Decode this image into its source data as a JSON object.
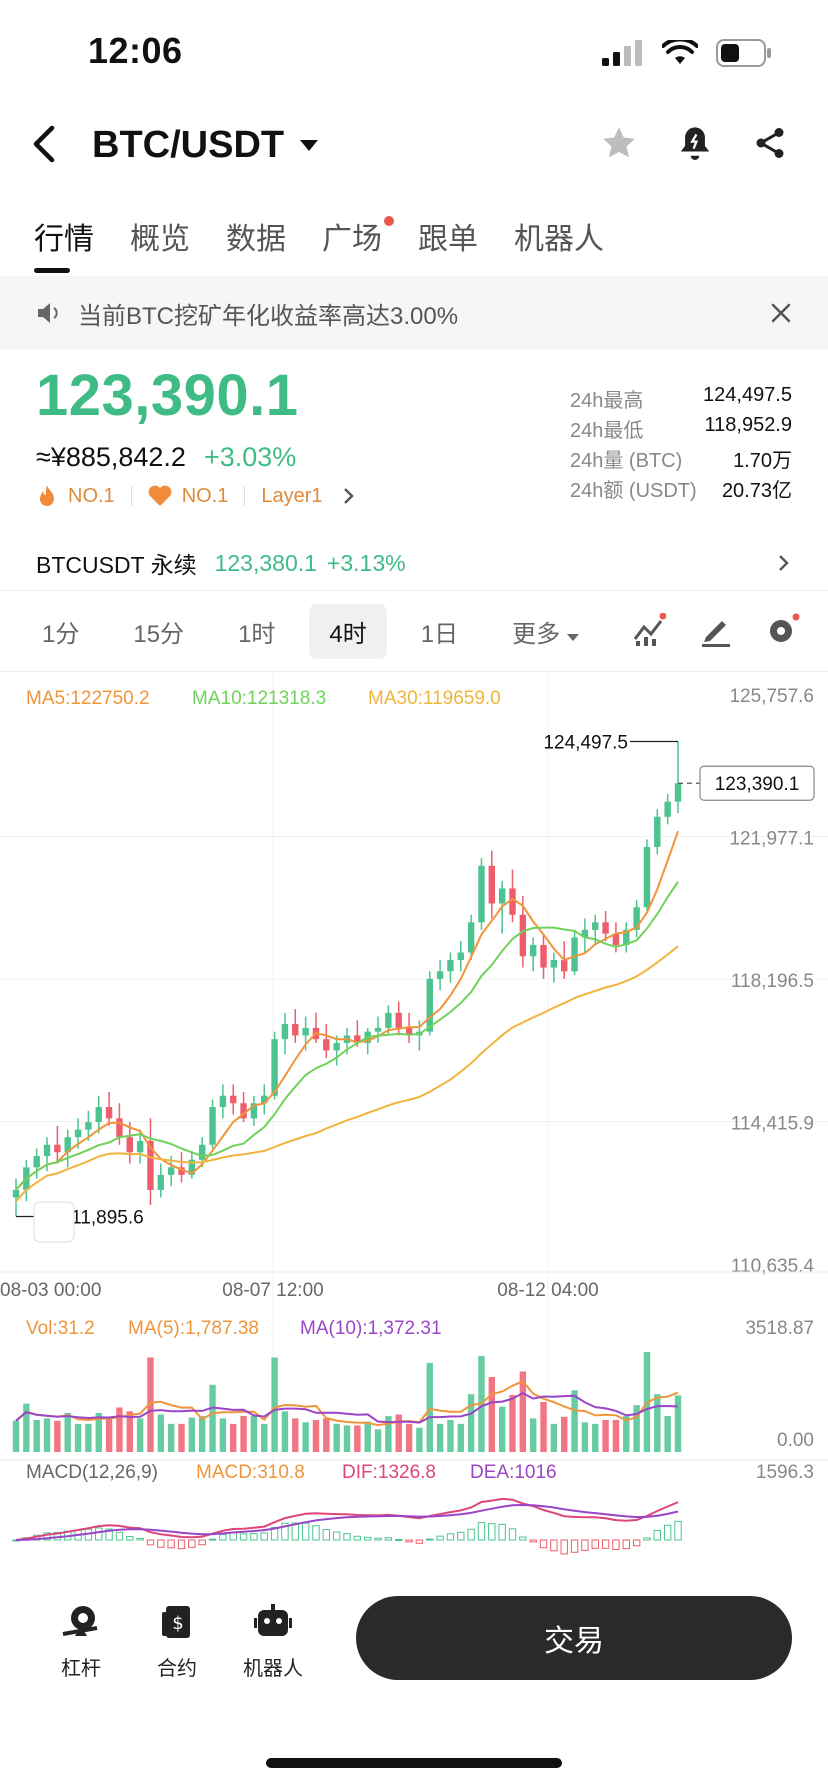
{
  "status_bar": {
    "time": "12:06",
    "icons": [
      "cellular-icon",
      "wifi-icon",
      "battery-icon"
    ]
  },
  "header": {
    "pair": "BTC/USDT",
    "icons": [
      "back-icon",
      "star-icon",
      "bell-icon",
      "share-icon"
    ]
  },
  "tabs": [
    {
      "label": "行情",
      "active": true
    },
    {
      "label": "概览"
    },
    {
      "label": "数据"
    },
    {
      "label": "广场",
      "dot": true
    },
    {
      "label": "跟单"
    },
    {
      "label": "机器人"
    }
  ],
  "notice": {
    "text": "当前BTC挖矿年化收益率高达3.00%"
  },
  "price": {
    "last": "123,390.1",
    "cny": "≈¥885,842.2",
    "change": "+3.03%",
    "tags": [
      "NO.1",
      "NO.1",
      "Layer1"
    ]
  },
  "stats": [
    {
      "label": "24h最高",
      "value": "124,497.5"
    },
    {
      "label": "24h最低",
      "value": "118,952.9"
    },
    {
      "label": "24h量 (BTC)",
      "value": "1.70万"
    },
    {
      "label": "24h额 (USDT)",
      "value": "20.73亿"
    }
  ],
  "perpetual": {
    "label": "BTCUSDT 永续",
    "price": "123,380.1",
    "change": "+3.13%"
  },
  "timeframes": [
    {
      "label": "1分"
    },
    {
      "label": "15分"
    },
    {
      "label": "1时"
    },
    {
      "label": "4时",
      "active": true
    },
    {
      "label": "1日"
    },
    {
      "label": "更多"
    }
  ],
  "chart_data": {
    "type": "candlestick",
    "ma_legend": {
      "ma5": "MA5:122750.2",
      "ma10": "MA10:121318.3",
      "ma30": "MA30:119659.0"
    },
    "y_ticks": [
      "125,757.6",
      "121,977.1",
      "118,196.5",
      "114,415.9",
      "110,635.4"
    ],
    "y_range": [
      110635.4,
      125757.6
    ],
    "x_ticks": [
      "08-03 00:00",
      "08-07 12:00",
      "08-12 04:00"
    ],
    "high_label": "124,497.5",
    "low_label": "111,895.6",
    "current_label": "123,390.1",
    "candles_ohlc": [
      [
        112400,
        112900,
        111895.6,
        112600
      ],
      [
        112600,
        113400,
        112300,
        113200
      ],
      [
        113200,
        113700,
        112900,
        113500
      ],
      [
        113500,
        114000,
        113100,
        113800
      ],
      [
        113800,
        114300,
        113300,
        113600
      ],
      [
        113600,
        114200,
        113200,
        114000
      ],
      [
        114000,
        114500,
        113700,
        114200
      ],
      [
        114200,
        114700,
        113900,
        114400
      ],
      [
        114400,
        115100,
        114100,
        114800
      ],
      [
        114800,
        115200,
        114300,
        114500
      ],
      [
        114500,
        114900,
        113800,
        114000
      ],
      [
        114000,
        114400,
        113300,
        113600
      ],
      [
        113600,
        114200,
        113300,
        113900
      ],
      [
        113900,
        114500,
        112200,
        112600
      ],
      [
        112600,
        113300,
        112400,
        113000
      ],
      [
        113000,
        113500,
        112700,
        113200
      ],
      [
        113200,
        113600,
        112800,
        113000
      ],
      [
        113000,
        113600,
        112900,
        113400
      ],
      [
        113400,
        114000,
        113200,
        113800
      ],
      [
        113800,
        115000,
        113700,
        114800
      ],
      [
        114800,
        115400,
        114500,
        115100
      ],
      [
        115100,
        115400,
        114600,
        114900
      ],
      [
        114900,
        115200,
        114400,
        114500
      ],
      [
        114500,
        115100,
        114300,
        114900
      ],
      [
        114900,
        115400,
        114600,
        115100
      ],
      [
        115100,
        116800,
        115000,
        116600
      ],
      [
        116600,
        117300,
        116200,
        117000
      ],
      [
        117000,
        117400,
        116500,
        116700
      ],
      [
        116700,
        117200,
        116300,
        116900
      ],
      [
        116900,
        117300,
        116500,
        116600
      ],
      [
        116600,
        117000,
        116100,
        116300
      ],
      [
        116300,
        116700,
        115900,
        116500
      ],
      [
        116500,
        116900,
        116200,
        116700
      ],
      [
        116700,
        117100,
        116400,
        116500
      ],
      [
        116500,
        116900,
        116200,
        116800
      ],
      [
        116800,
        117200,
        116500,
        116900
      ],
      [
        116900,
        117500,
        116700,
        117300
      ],
      [
        117300,
        117600,
        116700,
        116900
      ],
      [
        116900,
        117300,
        116500,
        116700
      ],
      [
        116700,
        117100,
        116300,
        116800
      ],
      [
        116800,
        118400,
        116700,
        118200
      ],
      [
        118200,
        118700,
        117900,
        118400
      ],
      [
        118400,
        118900,
        118100,
        118700
      ],
      [
        118700,
        119200,
        118400,
        118900
      ],
      [
        118900,
        119900,
        118700,
        119700
      ],
      [
        119700,
        121400,
        119500,
        121200
      ],
      [
        121200,
        121600,
        119800,
        120200
      ],
      [
        120200,
        120800,
        119400,
        120600
      ],
      [
        120600,
        121100,
        119700,
        119900
      ],
      [
        119900,
        120400,
        118500,
        118800
      ],
      [
        118800,
        119300,
        118400,
        119100
      ],
      [
        119100,
        119400,
        118200,
        118500
      ],
      [
        118500,
        118900,
        118100,
        118700
      ],
      [
        118700,
        119200,
        118200,
        118400
      ],
      [
        118400,
        119500,
        118300,
        119300
      ],
      [
        119300,
        119800,
        118900,
        119500
      ],
      [
        119500,
        119900,
        119100,
        119700
      ],
      [
        119700,
        120000,
        119200,
        119400
      ],
      [
        119400,
        119700,
        118900,
        119100
      ],
      [
        119100,
        119700,
        118900,
        119500
      ],
      [
        119500,
        120300,
        119300,
        120100
      ],
      [
        120100,
        121900,
        120000,
        121700
      ],
      [
        121700,
        122700,
        121500,
        122500
      ],
      [
        122500,
        123100,
        122300,
        122900
      ],
      [
        122900,
        124497.5,
        122600,
        123390.1
      ]
    ],
    "volume_legend": {
      "vol": "Vol:31.2",
      "ma5": "MA(5):1,787.38",
      "ma10": "MA(10):1,372.31"
    },
    "volume_ticks": [
      "3518.87",
      "0.00"
    ],
    "macd_legend": {
      "label": "MACD(12,26,9)",
      "macd": "MACD:310.8",
      "dif": "DIF:1326.8",
      "dea": "DEA:1016"
    },
    "macd_ticks": [
      "1596.3"
    ]
  },
  "bottom_nav": {
    "items": [
      {
        "label": "杠杆",
        "icon": "leverage-icon"
      },
      {
        "label": "合约",
        "icon": "contract-icon"
      },
      {
        "label": "机器人",
        "icon": "robot-icon"
      }
    ],
    "trade_label": "交易"
  },
  "colors": {
    "up": "#4cc390",
    "down": "#ee5d6c",
    "ma5": "#f0953a",
    "ma10": "#6fd25a",
    "ma30": "#f0b43c",
    "vol_ma5": "#f0953a",
    "vol_ma10": "#9b45c6"
  }
}
